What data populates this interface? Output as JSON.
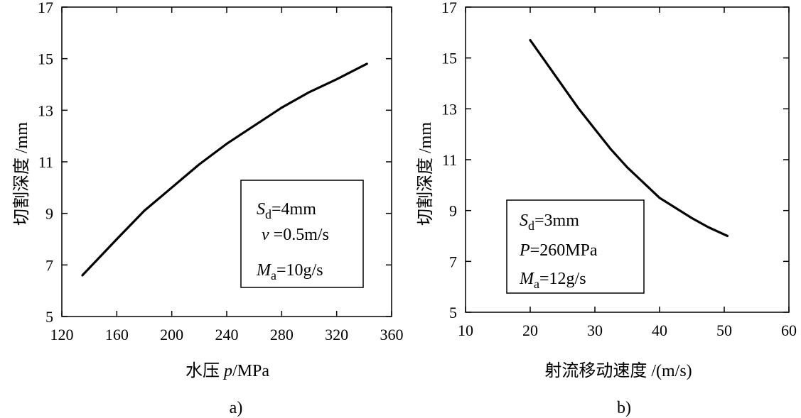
{
  "chart_data": [
    {
      "type": "line",
      "panel_label": "a)",
      "xlabel": "水压 p/MPa",
      "xlabel_parts": [
        "水压 ",
        "p",
        "/MPa"
      ],
      "ylabel": "切割深度 /mm",
      "xlim": [
        120,
        360
      ],
      "ylim": [
        5,
        17
      ],
      "xticks": [
        120,
        160,
        200,
        240,
        280,
        320,
        360
      ],
      "yticks": [
        5,
        7,
        9,
        11,
        13,
        15,
        17
      ],
      "grid": false,
      "legend_placement": "bottom-right",
      "series": [
        {
          "x": [
            135,
            160,
            180,
            200,
            220,
            240,
            260,
            280,
            300,
            320,
            342
          ],
          "y": [
            6.6,
            8.0,
            9.1,
            10.0,
            10.9,
            11.7,
            12.4,
            13.1,
            13.7,
            14.2,
            14.8
          ]
        }
      ],
      "annotations": [
        {
          "symbol": "S",
          "sub": "d",
          "rest": "=4mm"
        },
        {
          "symbol": "v",
          "sub": "",
          "rest": " =0.5m/s"
        },
        {
          "symbol": "M",
          "sub": "a",
          "rest": "=10g/s"
        }
      ]
    },
    {
      "type": "line",
      "panel_label": "b)",
      "xlabel": "射流移动速度 /(m/s)",
      "ylabel": "切割深度 /mm",
      "xlim": [
        10,
        60
      ],
      "ylim": [
        5,
        17
      ],
      "xticks": [
        10,
        20,
        30,
        40,
        50,
        60
      ],
      "yticks": [
        5,
        7,
        9,
        11,
        13,
        15,
        17
      ],
      "grid": false,
      "legend_placement": "bottom-left",
      "series": [
        {
          "x": [
            20,
            22.5,
            25,
            27.5,
            30,
            32.5,
            35,
            37.5,
            40,
            42.5,
            45,
            47.5,
            50.5
          ],
          "y": [
            15.7,
            14.8,
            13.9,
            13.0,
            12.2,
            11.4,
            10.7,
            10.1,
            9.5,
            9.1,
            8.7,
            8.35,
            8.0
          ]
        }
      ],
      "annotations": [
        {
          "symbol": "S",
          "sub": "d",
          "rest": "=3mm"
        },
        {
          "symbol": "P",
          "sub": "",
          "rest": "=260MPa"
        },
        {
          "symbol": "M",
          "sub": "a",
          "rest": "=12g/s"
        }
      ]
    }
  ]
}
